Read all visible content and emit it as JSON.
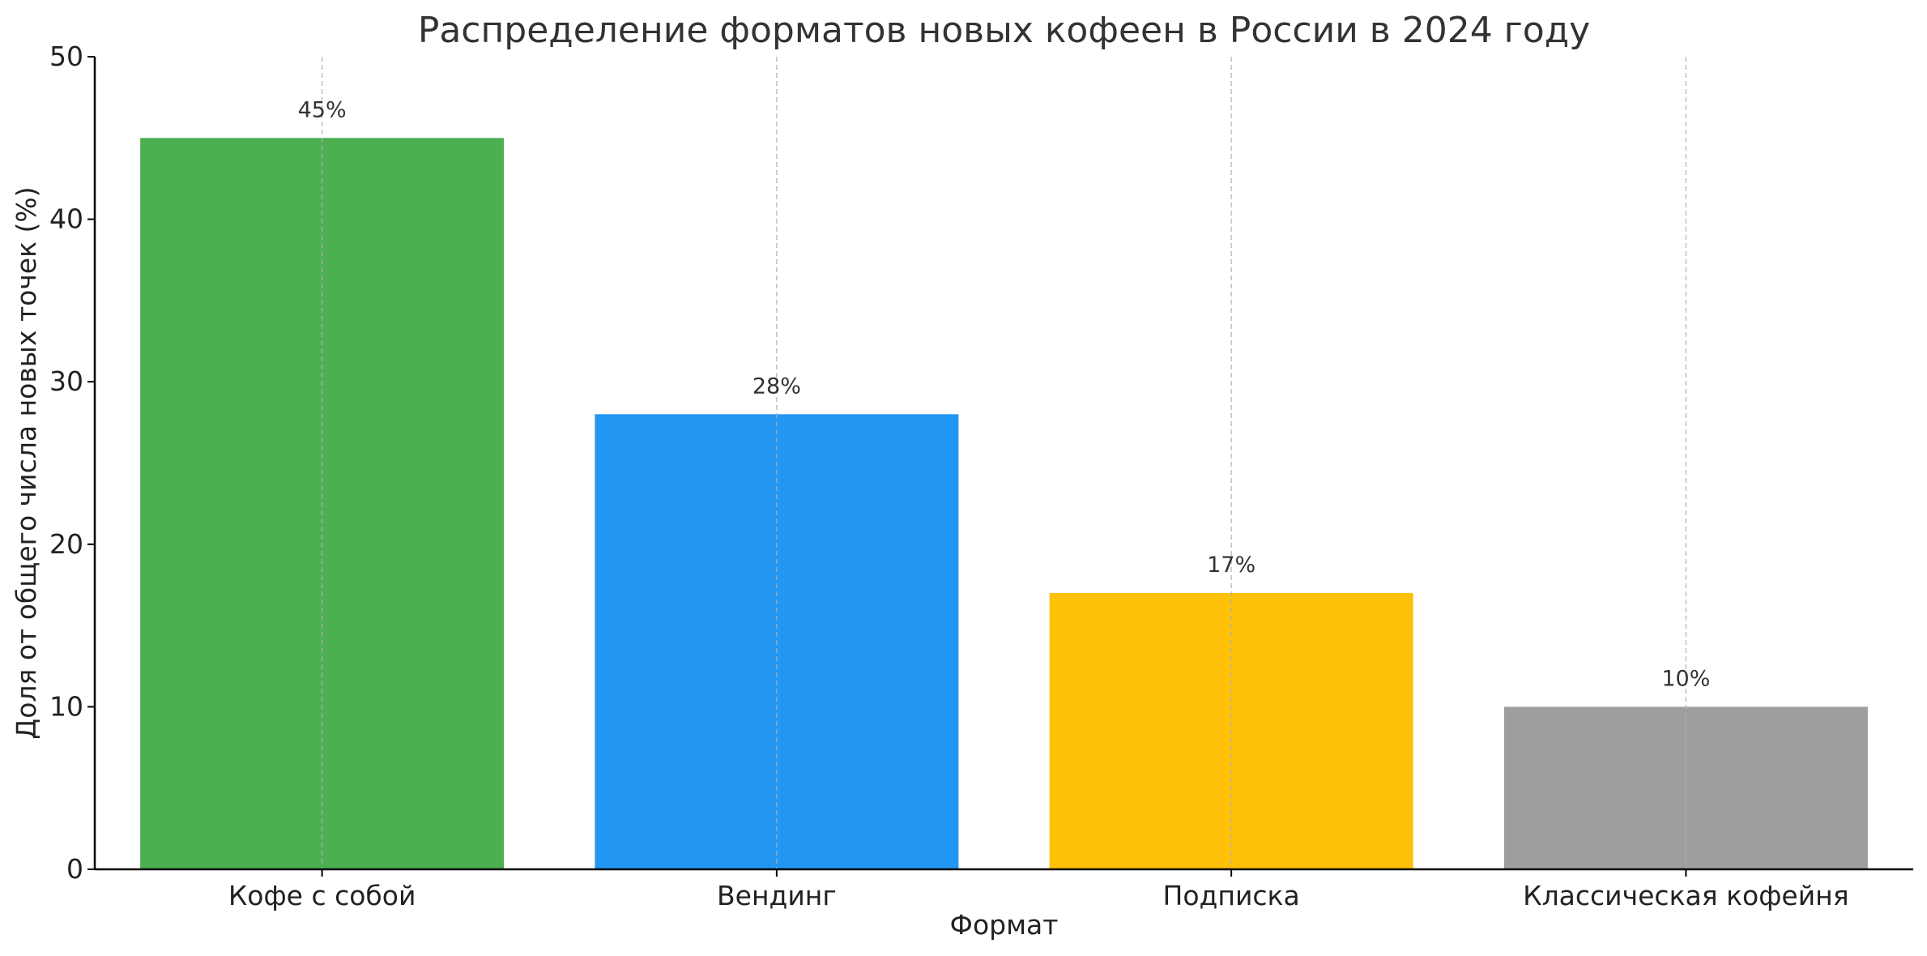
{
  "chart_data": {
    "type": "bar",
    "title": "Распределение форматов новых кофеен в России в 2024 году",
    "xlabel": "Формат",
    "ylabel": "Доля от общего числа новых точек (%)",
    "categories": [
      "Кофе с собой",
      "Вендинг",
      "Подписка",
      "Классическая кофейня"
    ],
    "values": [
      45,
      28,
      17,
      10
    ],
    "value_labels": [
      "45%",
      "28%",
      "17%",
      "10%"
    ],
    "colors": [
      "#4caf50",
      "#2196f3",
      "#ffc107",
      "#9e9e9e"
    ],
    "ylim": [
      0,
      50
    ],
    "yticks": [
      0,
      10,
      20,
      30,
      40,
      50
    ],
    "grid": "vertical dashed",
    "legend": "none"
  }
}
